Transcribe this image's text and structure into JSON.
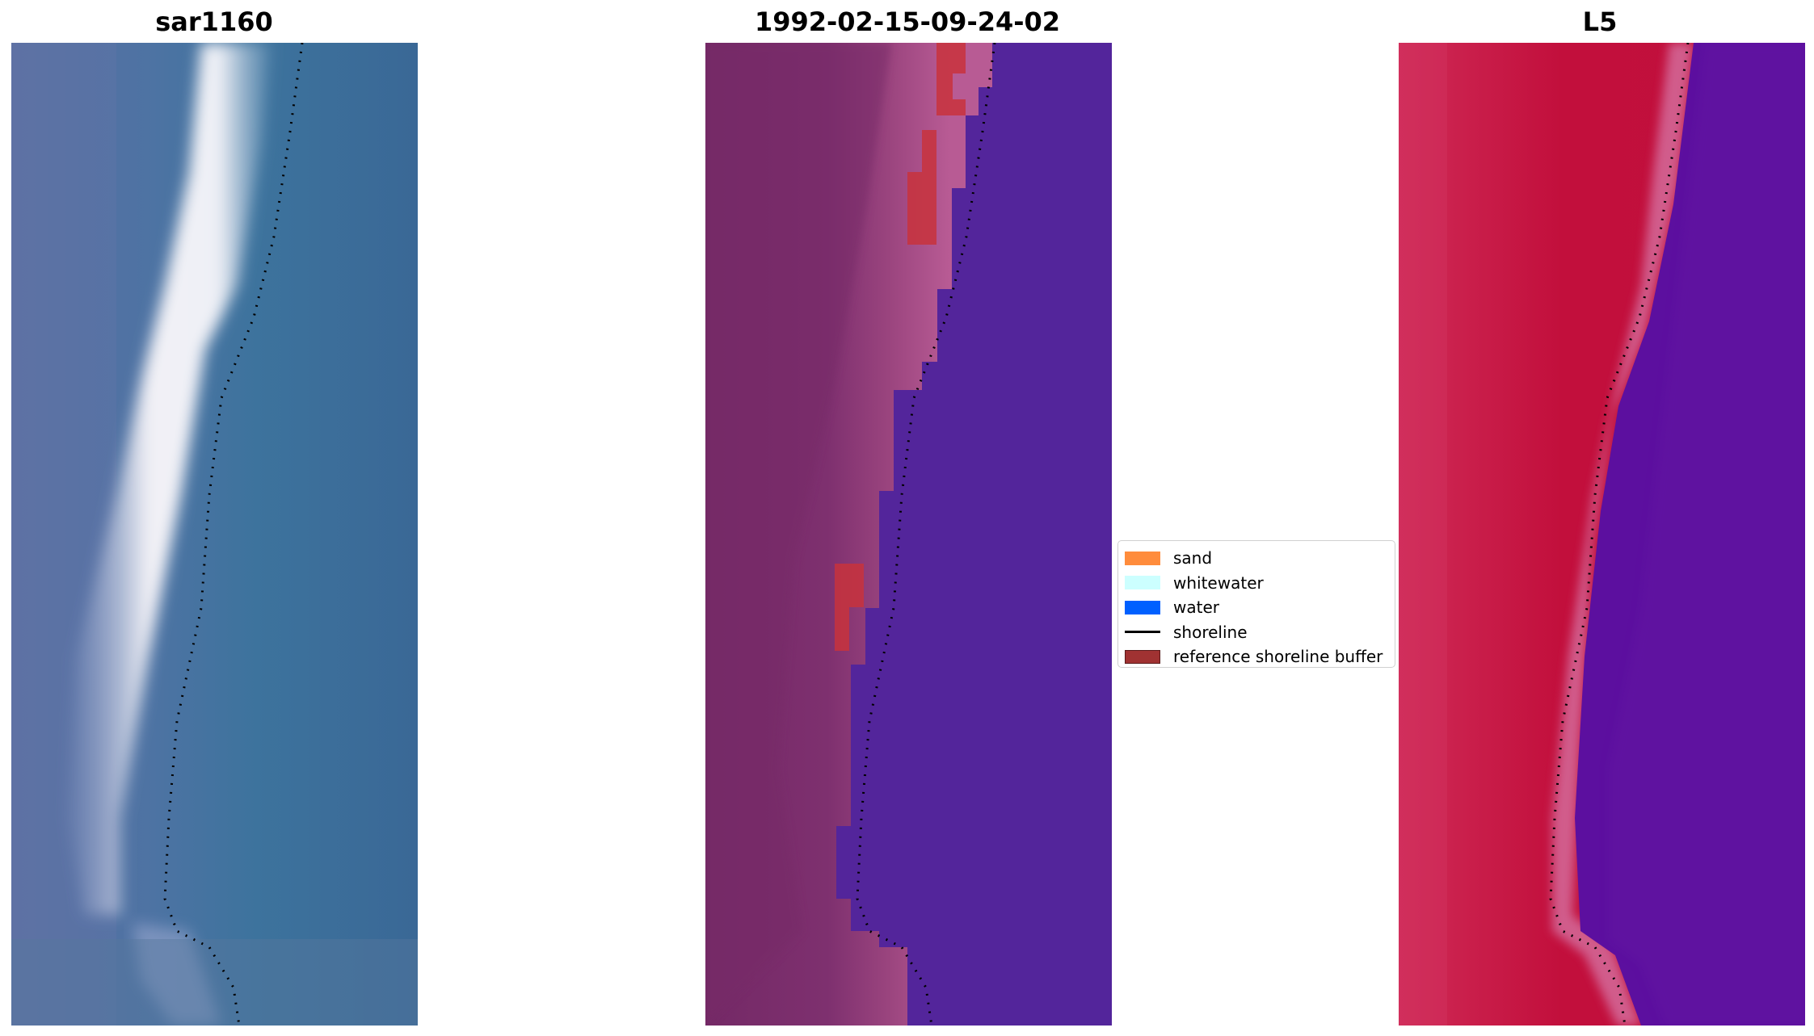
{
  "panels": [
    {
      "title": "sar1160"
    },
    {
      "title": "1992-02-15-09-24-02"
    },
    {
      "title": "L5"
    }
  ],
  "legend": {
    "items": [
      {
        "label": "sand",
        "color": "#ff8c3c",
        "kind": "patch"
      },
      {
        "label": "whitewater",
        "color": "#ccffff",
        "kind": "patch"
      },
      {
        "label": "water",
        "color": "#0060ff",
        "kind": "patch"
      },
      {
        "label": "shoreline",
        "color": "#000000",
        "kind": "line"
      },
      {
        "label": "reference shoreline buffer",
        "color": "#a03232",
        "kind": "patch"
      }
    ]
  },
  "colors": {
    "rgb_water": "#3a6c98",
    "rgb_land": "#5a6fa0",
    "rgb_beach": "#e8eaf2",
    "class_land": "#772a68",
    "class_sand_blend": "#b3568e",
    "class_water": "#53259b",
    "class_buffer": "#c8323c",
    "index_land": "#c0103c",
    "index_water": "#5c0f9f",
    "index_edge": "#d06a9a",
    "shoreline": "#000000"
  }
}
